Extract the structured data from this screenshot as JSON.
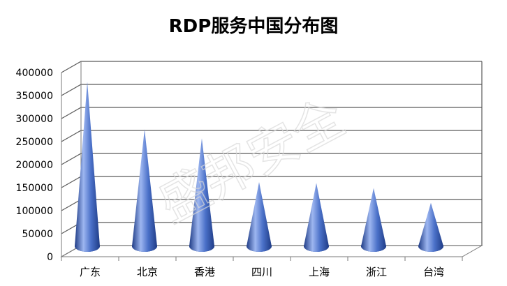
{
  "chart_data": {
    "type": "bar",
    "bar_shape": "cone",
    "title": "RDP服务中国分布图",
    "xlabel": "",
    "ylabel": "",
    "categories": [
      "广东",
      "北京",
      "香港",
      "四川",
      "上海",
      "浙江",
      "台湾"
    ],
    "values": [
      368000,
      265000,
      245000,
      150000,
      148000,
      137000,
      105000
    ],
    "ylim": [
      0,
      400000
    ],
    "yticks": [
      "0",
      "50000",
      "100000",
      "150000",
      "200000",
      "250000",
      "300000",
      "350000",
      "400000"
    ],
    "grid": true,
    "legend": "none",
    "colors": {
      "cone_light": "#9db6f0",
      "cone_mid": "#4a70c8",
      "cone_dark": "#1f3c86",
      "grid": "#5a5a5a"
    }
  },
  "watermark": "盛邦安全"
}
